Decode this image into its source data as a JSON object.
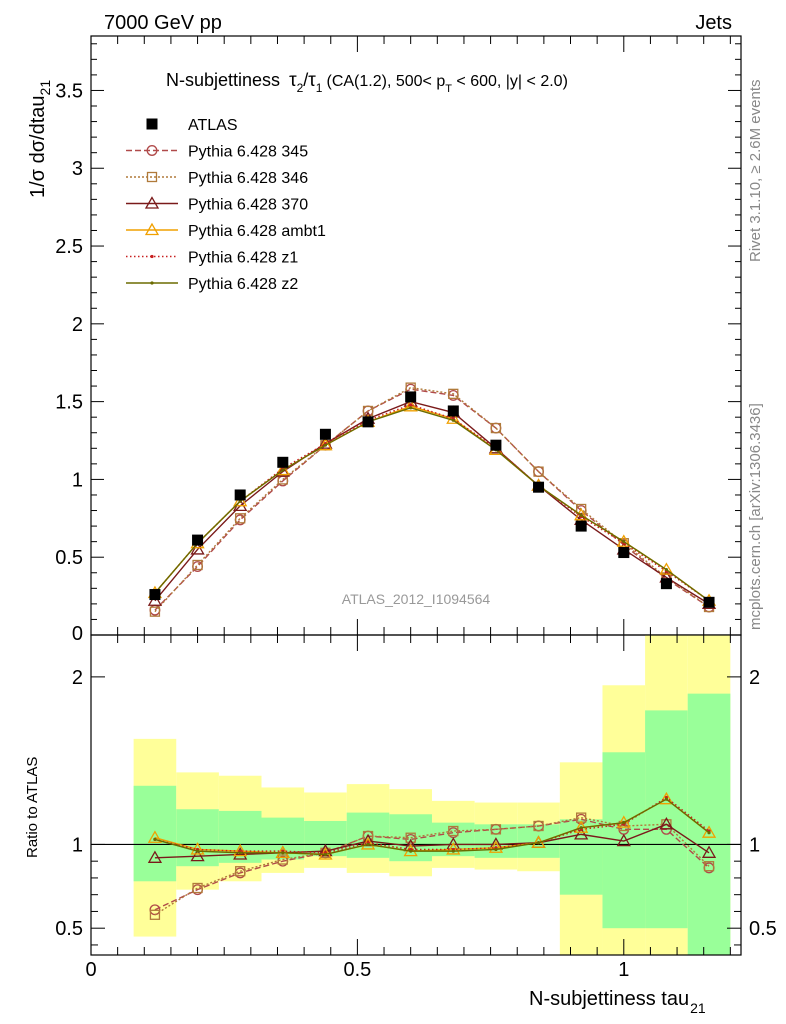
{
  "header": {
    "left": "7000 GeV pp",
    "right": "Jets"
  },
  "side": {
    "rivet": "Rivet 3.1.10, ≥ 2.6M events",
    "mcplots": "mcplots.cern.ch [arXiv:1306.3436]"
  },
  "colors": {
    "ratio_green": "#99ff99",
    "ratio_yellow": "#ffff99",
    "data": "#000000"
  },
  "chart_data": [
    {
      "type": "line",
      "panel": "main",
      "title": {
        "main": "N-subjettiness",
        "tau": "τ",
        "sub2": "2",
        "slash": "/",
        "sub1": "1",
        "cut_a": "(CA(1.2), 500< p",
        "cut_sub": "T",
        "cut_b": " < 600, |y| < 2.0)"
      },
      "ylabel": {
        "text": "1/σ dσ/dtau",
        "sub": "21"
      },
      "watermark": "ATLAS_2012_I1094564",
      "xlim": [
        0,
        1.22
      ],
      "ylim": [
        0,
        3.85
      ],
      "yticks": [
        0.5,
        1,
        1.5,
        2,
        2.5,
        3,
        3.5
      ],
      "ytick_labels": [
        "0.5",
        "1",
        "1.5",
        "2",
        "2.5",
        "3",
        "3.5"
      ],
      "ytick0_label": "0",
      "x": [
        0.12,
        0.2,
        0.28,
        0.36,
        0.44,
        0.52,
        0.6,
        0.68,
        0.76,
        0.84,
        0.92,
        1.0,
        1.08,
        1.16
      ],
      "series": [
        {
          "name": "ATLAS",
          "color": "#000000",
          "marker": "square",
          "dash": "",
          "values": [
            0.26,
            0.61,
            0.9,
            1.11,
            1.29,
            1.37,
            1.53,
            1.44,
            1.22,
            0.95,
            0.7,
            0.53,
            0.33,
            0.21
          ]
        },
        {
          "name": "Pythia 6.428 345",
          "color": "#b04a4a",
          "marker": "circle",
          "dash": "6,3",
          "values": [
            0.16,
            0.44,
            0.74,
            0.99,
            1.22,
            1.44,
            1.58,
            1.54,
            1.33,
            1.05,
            0.8,
            0.58,
            0.36,
            0.18
          ]
        },
        {
          "name": "Pythia 6.428 346",
          "color": "#b07a3a",
          "marker": "square-open",
          "dash": "2,2",
          "values": [
            0.15,
            0.45,
            0.75,
            1.0,
            1.22,
            1.44,
            1.59,
            1.55,
            1.33,
            1.05,
            0.81,
            0.59,
            0.37,
            0.18
          ]
        },
        {
          "name": "Pythia 6.428 370",
          "color": "#7a1a1a",
          "marker": "triangle",
          "dash": "",
          "values": [
            0.22,
            0.55,
            0.83,
            1.05,
            1.23,
            1.39,
            1.5,
            1.43,
            1.2,
            0.96,
            0.74,
            0.55,
            0.37,
            0.2
          ]
        },
        {
          "name": "Pythia 6.428 ambt1",
          "color": "#f0a000",
          "marker": "triangle",
          "dash": "",
          "values": [
            0.27,
            0.59,
            0.86,
            1.06,
            1.22,
            1.37,
            1.47,
            1.39,
            1.19,
            0.96,
            0.77,
            0.6,
            0.42,
            0.22
          ]
        },
        {
          "name": "Pythia 6.428 z1",
          "color": "#c82020",
          "marker": "dot",
          "dash": "1.5,2.5",
          "values": [
            0.27,
            0.59,
            0.86,
            1.07,
            1.23,
            1.38,
            1.48,
            1.39,
            1.2,
            0.96,
            0.76,
            0.59,
            0.41,
            0.22
          ]
        },
        {
          "name": "Pythia 6.428 z2",
          "color": "#6b6b00",
          "marker": "dot",
          "dash": "",
          "values": [
            0.27,
            0.59,
            0.86,
            1.06,
            1.22,
            1.37,
            1.46,
            1.38,
            1.19,
            0.96,
            0.77,
            0.6,
            0.42,
            0.22
          ]
        }
      ]
    },
    {
      "type": "line",
      "panel": "ratio",
      "ylabel": "Ratio to ATLAS",
      "xlabel": {
        "text": "N-subjettiness tau",
        "sub": "21"
      },
      "xlim": [
        0,
        1.22
      ],
      "ylim": [
        0.34,
        2.25
      ],
      "xticks": [
        0,
        0.5,
        1
      ],
      "xtick_labels": [
        "0",
        "0.5",
        "1"
      ],
      "yticks": [
        0.5,
        1,
        2
      ],
      "ytick_labels": [
        "0.5",
        "1",
        "2"
      ],
      "bands": {
        "edges": [
          0.08,
          0.16,
          0.24,
          0.32,
          0.4,
          0.48,
          0.56,
          0.64,
          0.72,
          0.8,
          0.88,
          0.96,
          1.04,
          1.12,
          1.2
        ],
        "yellow_lo": [
          0.45,
          0.73,
          0.78,
          0.83,
          0.86,
          0.83,
          0.81,
          0.86,
          0.85,
          0.84,
          0.3,
          0.3,
          0.3,
          0.3
        ],
        "yellow_hi": [
          1.63,
          1.43,
          1.41,
          1.34,
          1.31,
          1.36,
          1.33,
          1.26,
          1.25,
          1.25,
          1.49,
          1.95,
          2.4,
          2.4
        ],
        "green_lo": [
          0.78,
          0.87,
          0.89,
          0.91,
          0.93,
          0.92,
          0.9,
          0.93,
          0.92,
          0.92,
          0.7,
          0.5,
          0.5,
          0.3
        ],
        "green_hi": [
          1.35,
          1.21,
          1.2,
          1.16,
          1.14,
          1.19,
          1.18,
          1.13,
          1.12,
          1.12,
          1.15,
          1.55,
          1.8,
          1.9
        ]
      },
      "series": [
        {
          "name": "Pythia 6.428 345",
          "values": [
            0.61,
            0.73,
            0.83,
            0.9,
            0.95,
            1.05,
            1.03,
            1.07,
            1.09,
            1.11,
            1.15,
            1.09,
            1.09,
            0.86
          ]
        },
        {
          "name": "Pythia 6.428 346",
          "values": [
            0.58,
            0.74,
            0.84,
            0.91,
            0.95,
            1.05,
            1.04,
            1.08,
            1.09,
            1.11,
            1.16,
            1.11,
            1.12,
            0.87
          ]
        },
        {
          "name": "Pythia 6.428 370",
          "values": [
            0.92,
            0.93,
            0.94,
            0.95,
            0.96,
            1.02,
            0.99,
            1.0,
            1.0,
            1.01,
            1.06,
            1.02,
            1.12,
            0.95
          ]
        },
        {
          "name": "Pythia 6.428 ambt1",
          "values": [
            1.04,
            0.97,
            0.96,
            0.95,
            0.94,
            1.0,
            0.96,
            0.97,
            0.98,
            1.01,
            1.1,
            1.13,
            1.27,
            1.07
          ]
        },
        {
          "name": "Pythia 6.428 z1",
          "values": [
            1.03,
            0.97,
            0.96,
            0.96,
            0.95,
            1.01,
            0.97,
            0.97,
            0.98,
            1.01,
            1.09,
            1.12,
            1.28,
            1.08
          ]
        },
        {
          "name": "Pythia 6.428 z2",
          "values": [
            1.03,
            0.96,
            0.95,
            0.95,
            0.94,
            1.0,
            0.96,
            0.96,
            0.97,
            1.01,
            1.1,
            1.13,
            1.27,
            1.07
          ]
        }
      ]
    }
  ]
}
